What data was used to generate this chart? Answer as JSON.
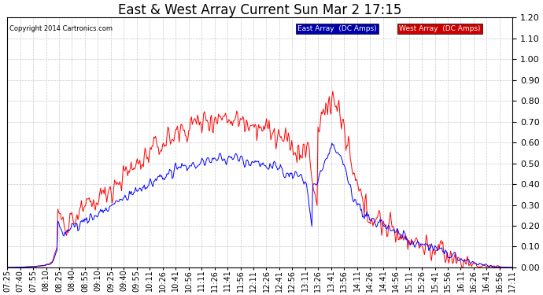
{
  "title": "East & West Array Current Sun Mar 2 17:15",
  "copyright": "Copyright 2014 Cartronics.com",
  "ylim": [
    0,
    1.2
  ],
  "yticks": [
    0.0,
    0.1,
    0.2,
    0.3,
    0.4,
    0.5,
    0.6,
    0.7,
    0.8,
    0.9,
    1.0,
    1.1,
    1.2
  ],
  "east_color": "#0000ff",
  "west_color": "#ff0000",
  "east_label": "East Array  (DC Amps)",
  "west_label": "West Array  (DC Amps)",
  "background_color": "#ffffff",
  "grid_color": "#bbbbbb",
  "title_fontsize": 12,
  "tick_label_fontsize": 7,
  "x_tick_labels": [
    "07:25",
    "07:40",
    "07:55",
    "08:10",
    "08:25",
    "08:40",
    "08:55",
    "09:10",
    "09:25",
    "09:40",
    "09:55",
    "10:11",
    "10:26",
    "10:41",
    "10:56",
    "11:11",
    "11:26",
    "11:41",
    "11:56",
    "12:11",
    "12:26",
    "12:41",
    "12:56",
    "13:11",
    "13:26",
    "13:41",
    "13:56",
    "14:11",
    "14:26",
    "14:41",
    "14:56",
    "15:11",
    "15:26",
    "15:41",
    "15:56",
    "16:11",
    "16:26",
    "16:41",
    "16:56",
    "17:11"
  ],
  "east_legend_color": "#0000aa",
  "west_legend_color": "#cc0000"
}
